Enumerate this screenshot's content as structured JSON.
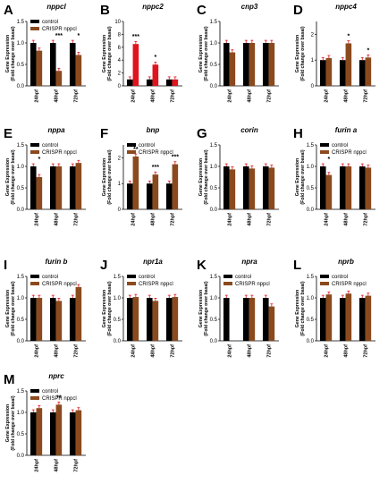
{
  "colors": {
    "control": "#000000",
    "crispr": "#8B4A1E",
    "crispr_red": "#E0141E",
    "axis": "#000000",
    "error": "#E0141E",
    "star": "#000000"
  },
  "chart_data": [
    {
      "letter": "A",
      "title": "nppcl",
      "type": "bar",
      "ylabel": "Gene Expression\n(Fold change over basal)",
      "ylim": [
        0,
        1.5
      ],
      "yticks": [
        "0.0",
        "0.5",
        "1.0",
        "1.5"
      ],
      "categories": [
        "24hpf",
        "48hpf",
        "72hpf"
      ],
      "legend_labels": [
        "control",
        "CRISPR nppcl"
      ],
      "series": [
        {
          "name": "control",
          "values": [
            1.0,
            1.0,
            1.0
          ]
        },
        {
          "name": "CRISPR nppcl",
          "values": [
            0.82,
            0.35,
            0.72
          ]
        }
      ],
      "annotations": [
        "",
        "***",
        "*"
      ]
    },
    {
      "letter": "B",
      "title": "nppc2",
      "type": "bar",
      "ylabel": "Gene Expression\n(Fold change over basal)",
      "ylim": [
        0,
        10
      ],
      "yticks": [
        "0",
        "2",
        "4",
        "6",
        "8",
        "10"
      ],
      "categories": [
        "24hpf",
        "48hpf",
        "72hpf"
      ],
      "legend_labels": [],
      "series": [
        {
          "name": "control",
          "values": [
            1.0,
            1.0,
            1.0
          ]
        },
        {
          "name": "CRISPR nppcl",
          "values": [
            6.5,
            3.3,
            1.0
          ]
        }
      ],
      "annotations": [
        "***",
        "*",
        ""
      ]
    },
    {
      "letter": "C",
      "title": "cnp3",
      "type": "bar",
      "ylabel": "Gene Expression\n(Fold change over basal)",
      "ylim": [
        0,
        1.5
      ],
      "yticks": [
        "0.0",
        "0.5",
        "1.0",
        "1.5"
      ],
      "categories": [
        "24hpf",
        "48hpf",
        "72hpf"
      ],
      "legend_labels": [],
      "series": [
        {
          "name": "control",
          "values": [
            1.0,
            1.0,
            1.0
          ]
        },
        {
          "name": "CRISPR nppcl",
          "values": [
            0.78,
            1.0,
            1.0
          ]
        }
      ],
      "annotations": [
        "",
        "",
        ""
      ]
    },
    {
      "letter": "D",
      "title": "nppc4",
      "type": "bar",
      "ylabel": "Gene Expression\n(Fold change over basal)",
      "ylim": [
        0,
        2.5
      ],
      "yticks": [
        "0",
        "1",
        "2"
      ],
      "categories": [
        "24hpf",
        "48hpf",
        "72hpf"
      ],
      "legend_labels": [],
      "series": [
        {
          "name": "control",
          "values": [
            1.0,
            1.0,
            1.0
          ]
        },
        {
          "name": "CRISPR nppcl",
          "values": [
            1.08,
            1.65,
            1.1
          ]
        }
      ],
      "annotations": [
        "",
        "*",
        "*"
      ]
    },
    {
      "letter": "E",
      "title": "nppa",
      "type": "bar",
      "ylabel": "Gene Expression\n(Fold change over basal)",
      "ylim": [
        0,
        1.5
      ],
      "yticks": [
        "0.0",
        "0.5",
        "1.0",
        "1.5"
      ],
      "categories": [
        "24hpf",
        "48hpf",
        "72hpf"
      ],
      "legend_labels": [
        "control",
        "CRISPR nppcl"
      ],
      "series": [
        {
          "name": "control",
          "values": [
            1.0,
            1.0,
            1.0
          ]
        },
        {
          "name": "CRISPR nppcl",
          "values": [
            0.75,
            1.0,
            1.08
          ]
        }
      ],
      "annotations": [
        "*",
        "",
        ""
      ]
    },
    {
      "letter": "F",
      "title": "bnp",
      "type": "bar",
      "ylabel": "Gene Expression\n(Fold change over basal)",
      "ylim": [
        0,
        2.5
      ],
      "yticks": [
        "0",
        "1",
        "2"
      ],
      "categories": [
        "24hpf",
        "48hpf",
        "72hpf"
      ],
      "legend_labels": [
        "control",
        "CRISPR nppcl"
      ],
      "series": [
        {
          "name": "control",
          "values": [
            1.0,
            1.0,
            1.0
          ]
        },
        {
          "name": "CRISPR nppcl",
          "values": [
            2.05,
            1.35,
            1.75
          ]
        }
      ],
      "annotations": [
        "**",
        "***",
        "***"
      ]
    },
    {
      "letter": "G",
      "title": "corin",
      "type": "bar",
      "ylabel": "Gene Expression\n(Fold change over basal)",
      "ylim": [
        0,
        1.5
      ],
      "yticks": [
        "0.0",
        "0.5",
        "1.0",
        "1.5"
      ],
      "categories": [
        "24hpf",
        "48hpf",
        "72hpf"
      ],
      "legend_labels": [],
      "series": [
        {
          "name": "control",
          "values": [
            1.0,
            1.0,
            1.0
          ]
        },
        {
          "name": "CRISPR nppcl",
          "values": [
            0.93,
            0.95,
            0.97
          ]
        }
      ],
      "annotations": [
        "",
        "",
        ""
      ]
    },
    {
      "letter": "H",
      "title": "furin a",
      "type": "bar",
      "ylabel": "Gene Expression\n(Fold change over basal)",
      "ylim": [
        0,
        1.5
      ],
      "yticks": [
        "0.0",
        "0.5",
        "1.0",
        "1.5"
      ],
      "categories": [
        "24hpf",
        "48hpf",
        "72hpf"
      ],
      "legend_labels": [
        "control",
        "CRISPR nppcl"
      ],
      "series": [
        {
          "name": "control",
          "values": [
            1.0,
            1.0,
            1.0
          ]
        },
        {
          "name": "CRISPR nppcl",
          "values": [
            0.8,
            1.0,
            0.97
          ]
        }
      ],
      "annotations": [
        "*",
        "",
        ""
      ]
    },
    {
      "letter": "I",
      "title": "furin b",
      "type": "bar",
      "ylabel": "Gene Expression\n(Fold change over basal)",
      "ylim": [
        0,
        1.5
      ],
      "yticks": [
        "0.0",
        "0.5",
        "1.0",
        "1.5"
      ],
      "categories": [
        "24hpf",
        "48hpf",
        "72hpf"
      ],
      "legend_labels": [
        "control",
        "CRISPR nppcl"
      ],
      "series": [
        {
          "name": "control",
          "values": [
            1.0,
            1.0,
            1.0
          ]
        },
        {
          "name": "CRISPR nppcl",
          "values": [
            1.0,
            0.93,
            1.25
          ]
        }
      ],
      "annotations": [
        "",
        "",
        ""
      ]
    },
    {
      "letter": "J",
      "title": "npr1a",
      "type": "bar",
      "ylabel": "Gene Expression\n(Fold change over basal)",
      "ylim": [
        0,
        1.5
      ],
      "yticks": [
        "0.0",
        "0.5",
        "1.0",
        "1.5"
      ],
      "categories": [
        "24hpf",
        "48hpf",
        "72hpf"
      ],
      "legend_labels": [
        "control",
        "CRISPR nppcl"
      ],
      "series": [
        {
          "name": "control",
          "values": [
            1.0,
            1.0,
            1.0
          ]
        },
        {
          "name": "CRISPR nppcl",
          "values": [
            1.02,
            0.93,
            1.02
          ]
        }
      ],
      "annotations": [
        "",
        "",
        ""
      ]
    },
    {
      "letter": "K",
      "title": "npra",
      "type": "bar",
      "ylabel": "Gene Expression\n(Fold change over basal)",
      "ylim": [
        0,
        1.5
      ],
      "yticks": [
        "0.0",
        "0.5",
        "1.0",
        "1.5"
      ],
      "categories": [
        "24hpf",
        "48hpf",
        "72hpf"
      ],
      "legend_labels": [
        "control",
        "CRISPR nppcl"
      ],
      "series": [
        {
          "name": "control",
          "values": [
            1.0,
            1.0,
            1.0
          ]
        },
        {
          "name": "CRISPR nppcl",
          "values": [
            0.0,
            1.0,
            0.8
          ]
        }
      ],
      "annotations": [
        "",
        "",
        ""
      ]
    },
    {
      "letter": "L",
      "title": "nprb",
      "type": "bar",
      "ylabel": "Gene Expression\n(Fold change over basal)",
      "ylim": [
        0,
        1.5
      ],
      "yticks": [
        "0.0",
        "0.5",
        "1.0",
        "1.5"
      ],
      "categories": [
        "24hpf",
        "48hpf",
        "72hpf"
      ],
      "legend_labels": [
        "control",
        "CRISPR nppcl"
      ],
      "series": [
        {
          "name": "control",
          "values": [
            1.0,
            1.0,
            1.0
          ]
        },
        {
          "name": "CRISPR nppcl",
          "values": [
            1.08,
            1.1,
            1.05
          ]
        }
      ],
      "annotations": [
        "",
        "",
        ""
      ]
    },
    {
      "letter": "M",
      "title": "nprc",
      "type": "bar",
      "ylabel": "Gene Expression\n(Fold change over basal)",
      "ylim": [
        0,
        1.5
      ],
      "yticks": [
        "0.0",
        "0.5",
        "1.0",
        "1.5"
      ],
      "categories": [
        "24hpf",
        "48hpf",
        "72hpf"
      ],
      "legend_labels": [
        "control",
        "CRISPR nppcl"
      ],
      "series": [
        {
          "name": "control",
          "values": [
            1.0,
            1.0,
            1.0
          ]
        },
        {
          "name": "CRISPR nppcl",
          "values": [
            1.1,
            1.18,
            1.05
          ]
        }
      ],
      "annotations": [
        "",
        "**",
        ""
      ]
    }
  ]
}
